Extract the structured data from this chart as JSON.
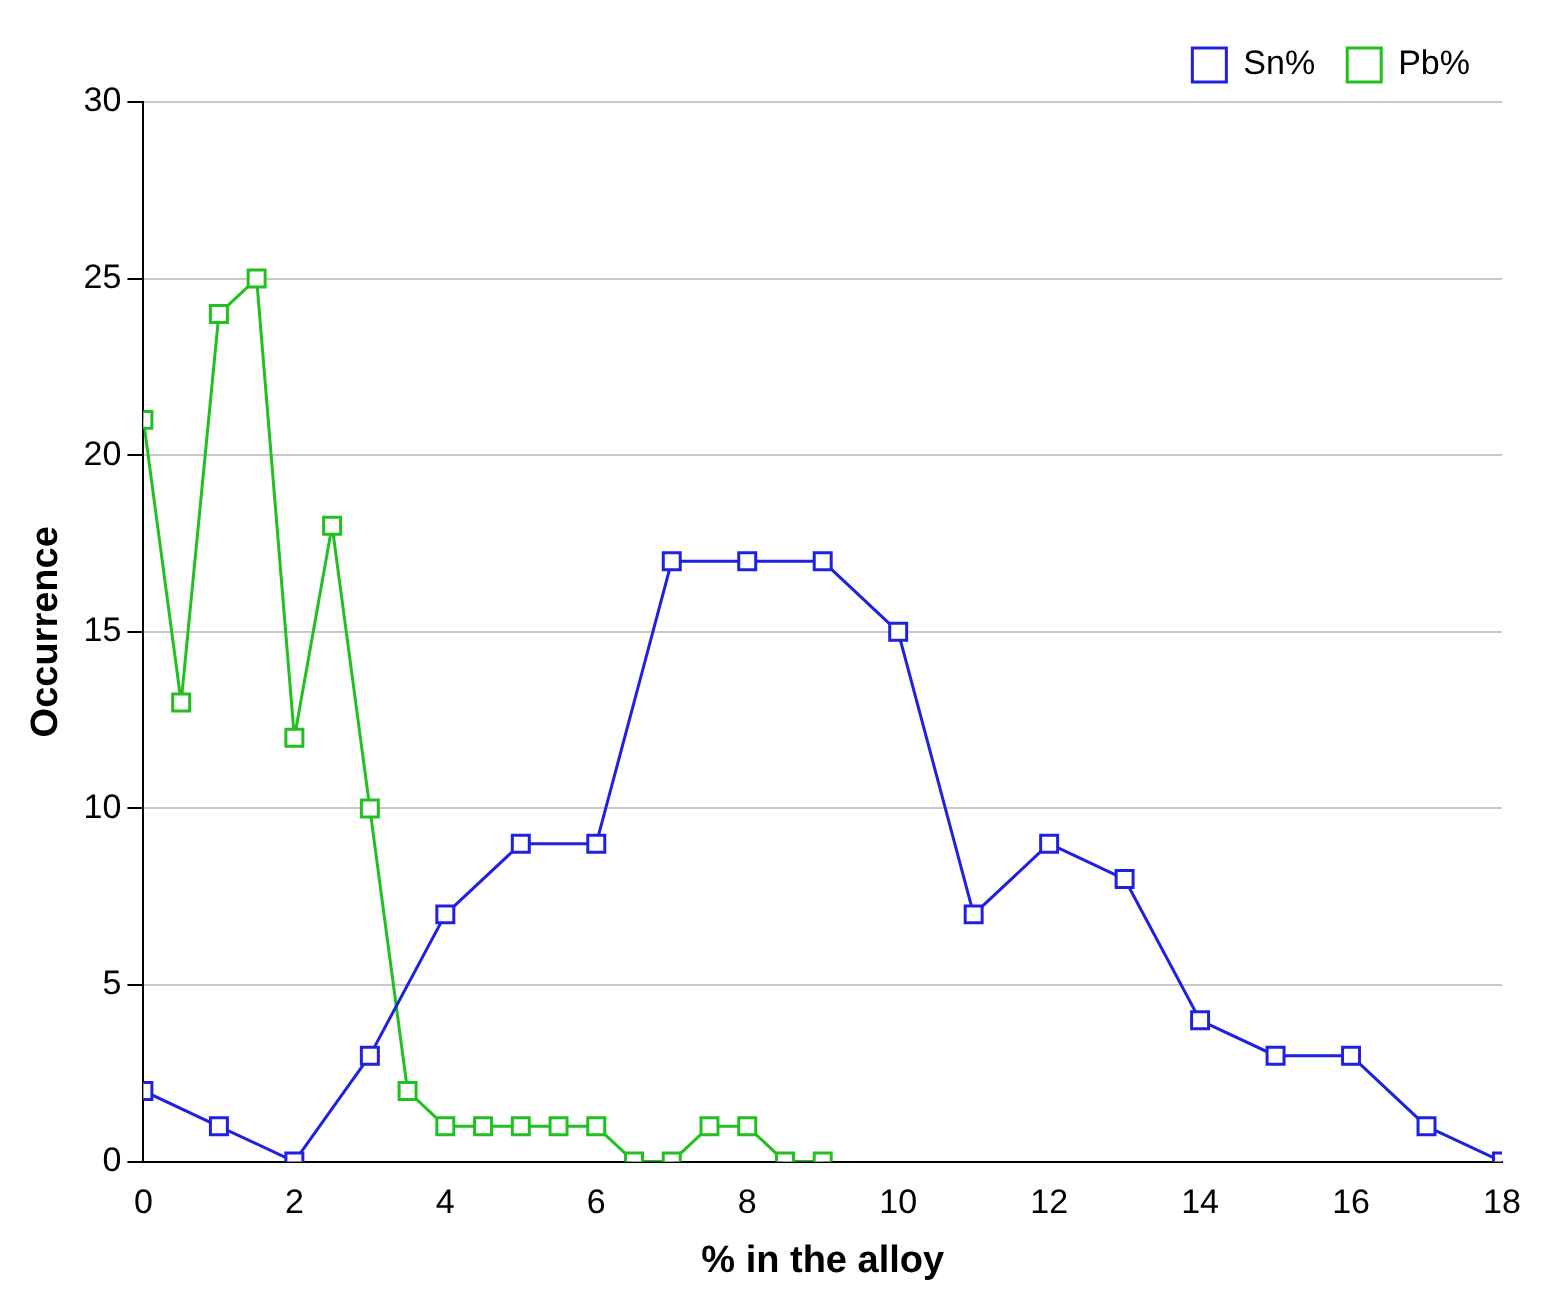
{
  "chart_data": {
    "type": "line",
    "xlabel": "% in the alloy",
    "ylabel": "Occurrence",
    "xlim": [
      0,
      18
    ],
    "xticks": [
      0,
      2,
      4,
      6,
      8,
      10,
      12,
      14,
      16,
      18
    ],
    "ylim": [
      0,
      30
    ],
    "yticks": [
      0,
      5,
      10,
      15,
      20,
      25,
      30
    ],
    "grid": "y",
    "legend": "top right",
    "marker": "square",
    "line_style": "solid",
    "series": [
      {
        "name": "Sn%",
        "color": "#2020e0",
        "x": [
          0,
          1,
          2,
          3,
          4,
          5,
          6,
          7,
          8,
          9,
          10,
          11,
          12,
          13,
          14,
          15,
          16,
          17,
          18
        ],
        "values": [
          2,
          1,
          0,
          3,
          7,
          9,
          9,
          17,
          17,
          17,
          15,
          7,
          9,
          8,
          4,
          3,
          3,
          1,
          0
        ]
      },
      {
        "name": "Pb%",
        "color": "#20c020",
        "x": [
          0,
          0.5,
          1,
          1.5,
          2,
          2.5,
          3,
          3.5,
          4,
          4.5,
          5,
          5.5,
          6,
          6.5,
          7,
          7.5,
          8,
          8.5,
          9
        ],
        "values": [
          21,
          13,
          24,
          25,
          12,
          18,
          10,
          2,
          1,
          1,
          1,
          1,
          1,
          0,
          0,
          1,
          1,
          0,
          0
        ]
      }
    ]
  }
}
